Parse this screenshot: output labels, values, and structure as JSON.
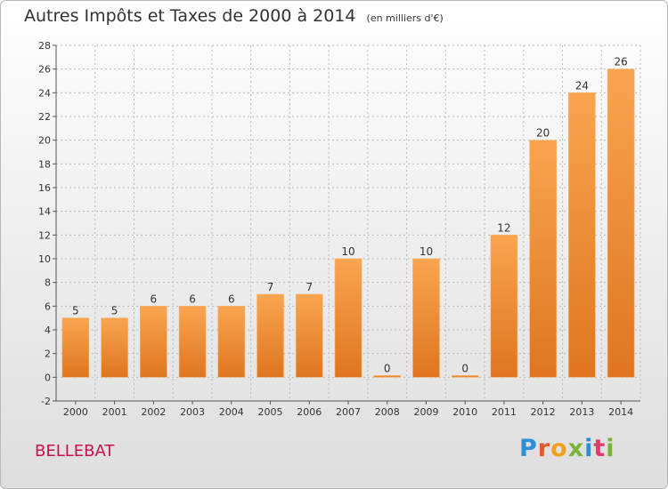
{
  "commune": "BELLEBAT",
  "brand": {
    "name": "Proxiti",
    "letter_colors": [
      "#2e8fd6",
      "#e25b2a",
      "#f0a01c",
      "#7bb33a",
      "#2e8fd6",
      "#e23b6b",
      "#7bb33a"
    ]
  },
  "colors": {
    "bar": "#f39a42",
    "bar_dark": "#e0751f",
    "grid": "#bbbbbb",
    "commune": "#c8104e"
  },
  "chart_data": {
    "type": "bar",
    "title": "Autres Impôts et Taxes de 2000 à 2014",
    "subtitle": "(en milliers d'€)",
    "xlabel": "",
    "ylabel": "",
    "categories": [
      "2000",
      "2001",
      "2002",
      "2003",
      "2004",
      "2005",
      "2006",
      "2007",
      "2008",
      "2009",
      "2010",
      "2011",
      "2012",
      "2013",
      "2014"
    ],
    "values": [
      5,
      5,
      6,
      6,
      6,
      7,
      7,
      10,
      0,
      10,
      0,
      12,
      20,
      24,
      26
    ],
    "ylim": [
      -2,
      28
    ],
    "yticks": [
      -2,
      0,
      2,
      4,
      6,
      8,
      10,
      12,
      14,
      16,
      18,
      20,
      22,
      24,
      26,
      28
    ],
    "grid": true
  }
}
